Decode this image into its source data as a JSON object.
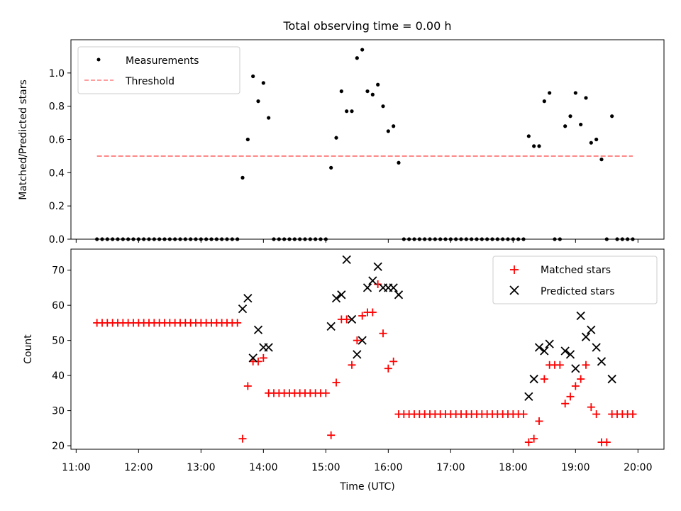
{
  "chart_data": [
    {
      "type": "scatter",
      "title": "Total observing time = 0.00 h",
      "xlabel": "",
      "ylabel": "Matched/Predicted stars",
      "ylim": [
        0,
        1.2
      ],
      "yticks": [
        "0.0",
        "0.2",
        "0.4",
        "0.6",
        "0.8",
        "1.0"
      ],
      "legend": "top-left",
      "legend_entries": [
        {
          "label": "Measurements",
          "marker": "dot",
          "color": "#000000"
        },
        {
          "label": "Threshold",
          "marker": "dashed-line",
          "color": "#ff7f7f"
        }
      ],
      "threshold": {
        "y": 0.5,
        "x_start": "11:20",
        "x_end": "19:55",
        "color": "#ff7f7f"
      },
      "series": [
        {
          "name": "Measurements",
          "marker": "dot",
          "color": "#000000",
          "points": [
            [
              "11:20",
              0
            ],
            [
              "11:25",
              0
            ],
            [
              "11:30",
              0
            ],
            [
              "11:35",
              0
            ],
            [
              "11:40",
              0
            ],
            [
              "11:45",
              0
            ],
            [
              "11:50",
              0
            ],
            [
              "11:55",
              0
            ],
            [
              "12:00",
              0
            ],
            [
              "12:05",
              0
            ],
            [
              "12:10",
              0
            ],
            [
              "12:15",
              0
            ],
            [
              "12:20",
              0
            ],
            [
              "12:25",
              0
            ],
            [
              "12:30",
              0
            ],
            [
              "12:35",
              0
            ],
            [
              "12:40",
              0
            ],
            [
              "12:45",
              0
            ],
            [
              "12:50",
              0
            ],
            [
              "12:55",
              0
            ],
            [
              "13:00",
              0
            ],
            [
              "13:05",
              0
            ],
            [
              "13:10",
              0
            ],
            [
              "13:15",
              0
            ],
            [
              "13:20",
              0
            ],
            [
              "13:25",
              0
            ],
            [
              "13:30",
              0
            ],
            [
              "13:35",
              0
            ],
            [
              "13:40",
              0.37
            ],
            [
              "13:45",
              0.6
            ],
            [
              "13:50",
              0.98
            ],
            [
              "13:55",
              0.83
            ],
            [
              "14:00",
              0.94
            ],
            [
              "14:05",
              0.73
            ],
            [
              "14:10",
              0
            ],
            [
              "14:15",
              0
            ],
            [
              "14:20",
              0
            ],
            [
              "14:25",
              0
            ],
            [
              "14:30",
              0
            ],
            [
              "14:35",
              0
            ],
            [
              "14:40",
              0
            ],
            [
              "14:45",
              0
            ],
            [
              "14:50",
              0
            ],
            [
              "14:55",
              0
            ],
            [
              "15:00",
              0
            ],
            [
              "15:05",
              0.43
            ],
            [
              "15:10",
              0.61
            ],
            [
              "15:15",
              0.89
            ],
            [
              "15:20",
              0.77
            ],
            [
              "15:25",
              0.77
            ],
            [
              "15:30",
              1.09
            ],
            [
              "15:35",
              1.14
            ],
            [
              "15:40",
              0.89
            ],
            [
              "15:45",
              0.87
            ],
            [
              "15:50",
              0.93
            ],
            [
              "15:55",
              0.8
            ],
            [
              "16:00",
              0.65
            ],
            [
              "16:05",
              0.68
            ],
            [
              "16:10",
              0.46
            ],
            [
              "16:15",
              0
            ],
            [
              "16:20",
              0
            ],
            [
              "16:25",
              0
            ],
            [
              "16:30",
              0
            ],
            [
              "16:35",
              0
            ],
            [
              "16:40",
              0
            ],
            [
              "16:45",
              0
            ],
            [
              "16:50",
              0
            ],
            [
              "16:55",
              0
            ],
            [
              "17:00",
              0
            ],
            [
              "17:05",
              0
            ],
            [
              "17:10",
              0
            ],
            [
              "17:15",
              0
            ],
            [
              "17:20",
              0
            ],
            [
              "17:25",
              0
            ],
            [
              "17:30",
              0
            ],
            [
              "17:35",
              0
            ],
            [
              "17:40",
              0
            ],
            [
              "17:45",
              0
            ],
            [
              "17:50",
              0
            ],
            [
              "17:55",
              0
            ],
            [
              "18:00",
              0
            ],
            [
              "18:05",
              0
            ],
            [
              "18:10",
              0
            ],
            [
              "18:15",
              0.62
            ],
            [
              "18:20",
              0.56
            ],
            [
              "18:25",
              0.56
            ],
            [
              "18:30",
              0.83
            ],
            [
              "18:35",
              0.88
            ],
            [
              "18:40",
              0
            ],
            [
              "18:45",
              0
            ],
            [
              "18:50",
              0.68
            ],
            [
              "18:55",
              0.74
            ],
            [
              "19:00",
              0.88
            ],
            [
              "19:05",
              0.69
            ],
            [
              "19:10",
              0.85
            ],
            [
              "19:15",
              0.58
            ],
            [
              "19:20",
              0.6
            ],
            [
              "19:25",
              0.48
            ],
            [
              "19:30",
              0
            ],
            [
              "19:35",
              0.74
            ],
            [
              "19:40",
              0
            ],
            [
              "19:45",
              0
            ],
            [
              "19:50",
              0
            ],
            [
              "19:55",
              0
            ]
          ]
        }
      ]
    },
    {
      "type": "scatter",
      "title": "",
      "xlabel": "Time (UTC)",
      "ylabel": "Count",
      "ylim": [
        19,
        76
      ],
      "yticks": [
        "20",
        "30",
        "40",
        "50",
        "60",
        "70"
      ],
      "xlim": [
        "10:55",
        "20:25"
      ],
      "xticks": [
        "11:00",
        "12:00",
        "13:00",
        "14:00",
        "15:00",
        "16:00",
        "17:00",
        "18:00",
        "19:00",
        "20:00"
      ],
      "legend": "top-right",
      "legend_entries": [
        {
          "label": "Matched stars",
          "marker": "plus",
          "color": "#ff0000"
        },
        {
          "label": "Predicted stars",
          "marker": "x",
          "color": "#000000"
        }
      ],
      "series": [
        {
          "name": "Matched stars",
          "marker": "plus",
          "color": "#ff0000",
          "points": [
            [
              "11:20",
              55
            ],
            [
              "11:25",
              55
            ],
            [
              "11:30",
              55
            ],
            [
              "11:35",
              55
            ],
            [
              "11:40",
              55
            ],
            [
              "11:45",
              55
            ],
            [
              "11:50",
              55
            ],
            [
              "11:55",
              55
            ],
            [
              "12:00",
              55
            ],
            [
              "12:05",
              55
            ],
            [
              "12:10",
              55
            ],
            [
              "12:15",
              55
            ],
            [
              "12:20",
              55
            ],
            [
              "12:25",
              55
            ],
            [
              "12:30",
              55
            ],
            [
              "12:35",
              55
            ],
            [
              "12:40",
              55
            ],
            [
              "12:45",
              55
            ],
            [
              "12:50",
              55
            ],
            [
              "12:55",
              55
            ],
            [
              "13:00",
              55
            ],
            [
              "13:05",
              55
            ],
            [
              "13:10",
              55
            ],
            [
              "13:15",
              55
            ],
            [
              "13:20",
              55
            ],
            [
              "13:25",
              55
            ],
            [
              "13:30",
              55
            ],
            [
              "13:35",
              55
            ],
            [
              "13:40",
              22
            ],
            [
              "13:45",
              37
            ],
            [
              "13:50",
              44
            ],
            [
              "13:55",
              44
            ],
            [
              "14:00",
              45
            ],
            [
              "14:05",
              35
            ],
            [
              "14:10",
              35
            ],
            [
              "14:15",
              35
            ],
            [
              "14:20",
              35
            ],
            [
              "14:25",
              35
            ],
            [
              "14:30",
              35
            ],
            [
              "14:35",
              35
            ],
            [
              "14:40",
              35
            ],
            [
              "14:45",
              35
            ],
            [
              "14:50",
              35
            ],
            [
              "14:55",
              35
            ],
            [
              "15:00",
              35
            ],
            [
              "15:05",
              23
            ],
            [
              "15:10",
              38
            ],
            [
              "15:15",
              56
            ],
            [
              "15:20",
              56
            ],
            [
              "15:25",
              43
            ],
            [
              "15:30",
              50
            ],
            [
              "15:35",
              57
            ],
            [
              "15:40",
              58
            ],
            [
              "15:45",
              58
            ],
            [
              "15:50",
              66
            ],
            [
              "15:55",
              52
            ],
            [
              "16:00",
              42
            ],
            [
              "16:05",
              44
            ],
            [
              "16:10",
              29
            ],
            [
              "16:15",
              29
            ],
            [
              "16:20",
              29
            ],
            [
              "16:25",
              29
            ],
            [
              "16:30",
              29
            ],
            [
              "16:35",
              29
            ],
            [
              "16:40",
              29
            ],
            [
              "16:45",
              29
            ],
            [
              "16:50",
              29
            ],
            [
              "16:55",
              29
            ],
            [
              "17:00",
              29
            ],
            [
              "17:05",
              29
            ],
            [
              "17:10",
              29
            ],
            [
              "17:15",
              29
            ],
            [
              "17:20",
              29
            ],
            [
              "17:25",
              29
            ],
            [
              "17:30",
              29
            ],
            [
              "17:35",
              29
            ],
            [
              "17:40",
              29
            ],
            [
              "17:45",
              29
            ],
            [
              "17:50",
              29
            ],
            [
              "17:55",
              29
            ],
            [
              "18:00",
              29
            ],
            [
              "18:05",
              29
            ],
            [
              "18:10",
              29
            ],
            [
              "18:15",
              21
            ],
            [
              "18:20",
              22
            ],
            [
              "18:25",
              27
            ],
            [
              "18:30",
              39
            ],
            [
              "18:35",
              43
            ],
            [
              "18:40",
              43
            ],
            [
              "18:45",
              43
            ],
            [
              "18:50",
              32
            ],
            [
              "18:55",
              34
            ],
            [
              "19:00",
              37
            ],
            [
              "19:05",
              39
            ],
            [
              "19:10",
              43
            ],
            [
              "19:15",
              31
            ],
            [
              "19:20",
              29
            ],
            [
              "19:25",
              21
            ],
            [
              "19:30",
              21
            ],
            [
              "19:35",
              29
            ],
            [
              "19:40",
              29
            ],
            [
              "19:45",
              29
            ],
            [
              "19:50",
              29
            ],
            [
              "19:55",
              29
            ]
          ]
        },
        {
          "name": "Predicted stars",
          "marker": "x",
          "color": "#000000",
          "points": [
            [
              "13:40",
              59
            ],
            [
              "13:45",
              62
            ],
            [
              "13:50",
              45
            ],
            [
              "13:55",
              53
            ],
            [
              "14:00",
              48
            ],
            [
              "14:05",
              48
            ],
            [
              "15:05",
              54
            ],
            [
              "15:10",
              62
            ],
            [
              "15:15",
              63
            ],
            [
              "15:20",
              73
            ],
            [
              "15:25",
              56
            ],
            [
              "15:30",
              46
            ],
            [
              "15:35",
              50
            ],
            [
              "15:40",
              65
            ],
            [
              "15:45",
              67
            ],
            [
              "15:50",
              71
            ],
            [
              "15:55",
              65
            ],
            [
              "16:00",
              65
            ],
            [
              "16:05",
              65
            ],
            [
              "16:10",
              63
            ],
            [
              "18:15",
              34
            ],
            [
              "18:20",
              39
            ],
            [
              "18:25",
              48
            ],
            [
              "18:30",
              47
            ],
            [
              "18:35",
              49
            ],
            [
              "18:50",
              47
            ],
            [
              "18:55",
              46
            ],
            [
              "19:00",
              42
            ],
            [
              "19:05",
              57
            ],
            [
              "19:10",
              51
            ],
            [
              "19:15",
              53
            ],
            [
              "19:20",
              48
            ],
            [
              "19:25",
              44
            ],
            [
              "19:35",
              39
            ]
          ]
        }
      ]
    }
  ]
}
